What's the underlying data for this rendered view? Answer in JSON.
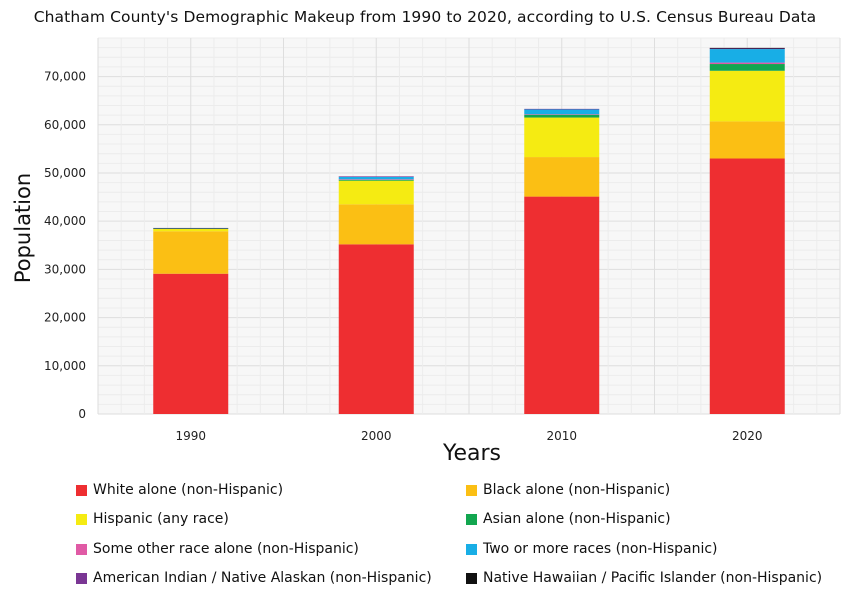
{
  "chart_data": {
    "type": "bar",
    "stacked": true,
    "title": "Chatham County's Demographic Makeup from 1990 to 2020, according to U.S. Census Bureau Data",
    "xlabel": "Years",
    "ylabel": "Population",
    "categories": [
      "1990",
      "2000",
      "2010",
      "2020"
    ],
    "ylim": [
      0,
      78000
    ],
    "yticks": [
      0,
      10000,
      20000,
      30000,
      40000,
      50000,
      60000,
      70000
    ],
    "ytick_labels": [
      "0",
      "10,000",
      "20,000",
      "30,000",
      "40,000",
      "50,000",
      "60,000",
      "70,000"
    ],
    "grid": true,
    "legend_position": "bottom",
    "series": [
      {
        "name": "White alone (non-Hispanic)",
        "color": "#ee2e31",
        "values": [
          29100,
          35200,
          45100,
          53000
        ]
      },
      {
        "name": "Black alone (non-Hispanic)",
        "color": "#fbbf14",
        "values": [
          8800,
          8300,
          8200,
          7700
        ]
      },
      {
        "name": "Hispanic (any race)",
        "color": "#f5eb12",
        "values": [
          500,
          4900,
          8200,
          10500
        ]
      },
      {
        "name": "Asian alone (non-Hispanic)",
        "color": "#12a64f",
        "values": [
          100,
          200,
          600,
          1400
        ]
      },
      {
        "name": "Some other race alone (non-Hispanic)",
        "color": "#e05aa5",
        "values": [
          0,
          100,
          100,
          300
        ]
      },
      {
        "name": "Two or more races (non-Hispanic)",
        "color": "#18aee6",
        "values": [
          0,
          500,
          1000,
          2800
        ]
      },
      {
        "name": "American Indian / Native Alaskan (non-Hispanic)",
        "color": "#7a3694",
        "values": [
          100,
          100,
          100,
          200
        ]
      },
      {
        "name": "Native Hawaiian / Pacific Islander (non-Hispanic)",
        "color": "#111111",
        "values": [
          0,
          0,
          0,
          50
        ]
      }
    ]
  }
}
